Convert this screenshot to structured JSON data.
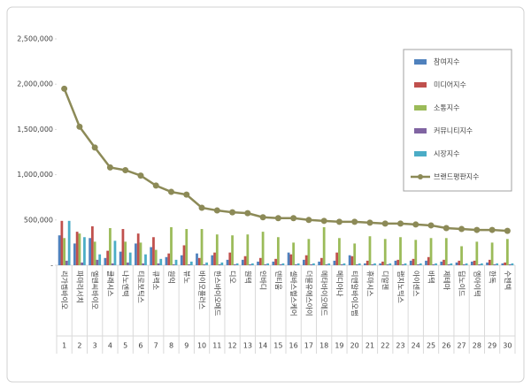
{
  "chart_data": {
    "type": "bar-line",
    "categories": [
      "리가켐바이오",
      "파마리서치",
      "엘앤씨바이오",
      "클래시스",
      "나노엔텍",
      "티로보틱스",
      "큐렉소",
      "원익",
      "뷰노",
      "바이오플러스",
      "한스바이오메드",
      "디오",
      "원텍",
      "인바디",
      "덴티움",
      "셀바스헬스케어",
      "더블유에스아이",
      "메타바이오메드",
      "메디아나",
      "티앤알바이오팹",
      "휴마시스",
      "디알젠",
      "랩지노믹스",
      "아이센스",
      "바텍",
      "제테마",
      "딥노이드",
      "엠아이텍",
      "한독",
      "수젠텍"
    ],
    "ranks": [
      1,
      2,
      3,
      4,
      5,
      6,
      7,
      8,
      9,
      10,
      11,
      12,
      13,
      14,
      15,
      16,
      17,
      18,
      19,
      20,
      21,
      22,
      23,
      24,
      25,
      26,
      27,
      28,
      29,
      30
    ],
    "series": [
      {
        "name": "참여지수",
        "type": "bar",
        "color": "#4f81bd",
        "values": [
          330000,
          240000,
          300000,
          80000,
          150000,
          240000,
          200000,
          90000,
          110000,
          130000,
          110000,
          60000,
          60000,
          40000,
          40000,
          140000,
          60000,
          40000,
          50000,
          110000,
          20000,
          20000,
          50000,
          50000,
          50000,
          40000,
          30000,
          40000,
          30000,
          20000
        ]
      },
      {
        "name": "미디어지수",
        "type": "bar",
        "color": "#c0504d",
        "values": [
          490000,
          370000,
          430000,
          160000,
          400000,
          350000,
          310000,
          130000,
          220000,
          80000,
          140000,
          140000,
          100000,
          80000,
          70000,
          120000,
          110000,
          80000,
          140000,
          100000,
          50000,
          40000,
          60000,
          70000,
          90000,
          60000,
          50000,
          50000,
          60000,
          30000
        ]
      },
      {
        "name": "소통지수",
        "type": "bar",
        "color": "#9bbb59",
        "values": [
          300000,
          350000,
          260000,
          410000,
          260000,
          250000,
          170000,
          420000,
          400000,
          400000,
          340000,
          330000,
          340000,
          370000,
          310000,
          250000,
          290000,
          420000,
          300000,
          240000,
          320000,
          290000,
          310000,
          280000,
          300000,
          300000,
          210000,
          260000,
          250000,
          290000
        ]
      },
      {
        "name": "커뮤니티지수",
        "type": "bar",
        "color": "#8064a2",
        "values": [
          50000,
          30000,
          60000,
          20000,
          30000,
          20000,
          20000,
          10000,
          10000,
          10000,
          10000,
          10000,
          10000,
          10000,
          10000,
          10000,
          10000,
          10000,
          10000,
          10000,
          10000,
          10000,
          10000,
          10000,
          10000,
          10000,
          10000,
          10000,
          10000,
          10000
        ]
      },
      {
        "name": "시장지수",
        "type": "bar",
        "color": "#4bacc6",
        "values": [
          490000,
          310000,
          120000,
          270000,
          140000,
          120000,
          70000,
          60000,
          40000,
          30000,
          30000,
          20000,
          20000,
          20000,
          20000,
          20000,
          20000,
          20000,
          20000,
          20000,
          20000,
          20000,
          20000,
          20000,
          20000,
          20000,
          20000,
          20000,
          20000,
          20000
        ]
      },
      {
        "name": "브랜드평판지수",
        "type": "line",
        "color": "#8c8a57",
        "values": [
          1950000,
          1530000,
          1300000,
          1080000,
          1050000,
          990000,
          880000,
          810000,
          780000,
          635000,
          605000,
          585000,
          575000,
          530000,
          520000,
          520000,
          500000,
          490000,
          480000,
          480000,
          470000,
          460000,
          460000,
          450000,
          440000,
          410000,
          400000,
          390000,
          390000,
          380000
        ]
      }
    ],
    "ylim": [
      0,
      2500000
    ],
    "yticks": [
      {
        "value": 0,
        "label": "-"
      },
      {
        "value": 500000,
        "label": "500,000"
      },
      {
        "value": 1000000,
        "label": "1,000,000"
      },
      {
        "value": 1500000,
        "label": "1,500,000"
      },
      {
        "value": 2000000,
        "label": "2,000,000"
      },
      {
        "value": 2500000,
        "label": "2,500,000"
      }
    ],
    "grid": false,
    "legend": "upper right"
  }
}
